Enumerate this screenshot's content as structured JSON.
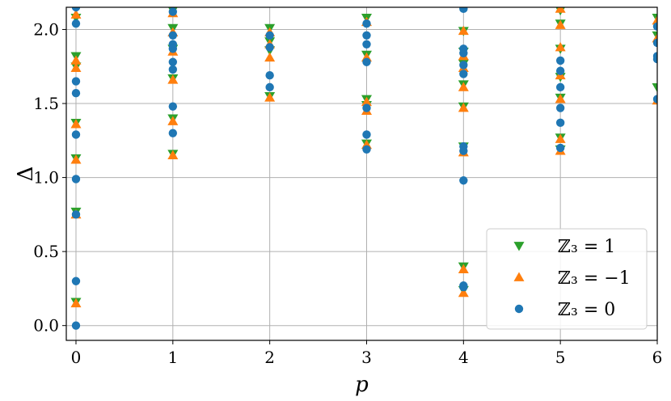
{
  "chart_data": {
    "type": "scatter",
    "xlabel": "p",
    "ylabel": "Δ",
    "xlim": [
      -0.1,
      6.0
    ],
    "ylim": [
      -0.1,
      2.15
    ],
    "xticks": [
      "0",
      "1",
      "2",
      "3",
      "4",
      "5",
      "6"
    ],
    "yticks": [
      "0.0",
      "0.5",
      "1.0",
      "1.5",
      "2.0"
    ],
    "grid": true,
    "legend_position": "bottom-right",
    "series": [
      {
        "name": "ℤ₃ = 1",
        "marker": "triangle-down",
        "color": "#2ca02c",
        "points": [
          [
            0,
            2.08
          ],
          [
            0,
            1.82
          ],
          [
            0,
            1.75
          ],
          [
            0,
            1.37
          ],
          [
            0,
            1.13
          ],
          [
            0,
            0.77
          ],
          [
            0,
            0.16
          ],
          [
            1,
            2.13
          ],
          [
            1,
            2.01
          ],
          [
            1,
            1.87
          ],
          [
            1,
            1.67
          ],
          [
            1,
            1.4
          ],
          [
            1,
            1.16
          ],
          [
            2,
            2.01
          ],
          [
            2,
            1.92
          ],
          [
            2,
            1.86
          ],
          [
            2,
            1.55
          ],
          [
            3,
            2.08
          ],
          [
            3,
            1.83
          ],
          [
            3,
            1.53
          ],
          [
            3,
            1.49
          ],
          [
            3,
            1.23
          ],
          [
            4,
            1.99
          ],
          [
            4,
            1.85
          ],
          [
            4,
            1.77
          ],
          [
            4,
            1.63
          ],
          [
            4,
            1.48
          ],
          [
            4,
            1.21
          ],
          [
            4,
            0.4
          ],
          [
            4,
            0.24
          ],
          [
            5,
            2.13
          ],
          [
            5,
            2.04
          ],
          [
            5,
            1.87
          ],
          [
            5,
            1.68
          ],
          [
            5,
            1.54
          ],
          [
            5,
            1.27
          ],
          [
            5,
            1.19
          ],
          [
            6,
            2.08
          ],
          [
            6,
            1.96
          ],
          [
            6,
            1.61
          ]
        ]
      },
      {
        "name": "ℤ₃ = −1",
        "marker": "triangle-up",
        "color": "#ff7f0e",
        "points": [
          [
            0,
            2.1
          ],
          [
            0,
            1.79
          ],
          [
            0,
            1.74
          ],
          [
            0,
            1.36
          ],
          [
            0,
            1.12
          ],
          [
            0,
            0.75
          ],
          [
            0,
            0.15
          ],
          [
            1,
            2.11
          ],
          [
            1,
            1.98
          ],
          [
            1,
            1.85
          ],
          [
            1,
            1.66
          ],
          [
            1,
            1.38
          ],
          [
            1,
            1.15
          ],
          [
            2,
            1.98
          ],
          [
            2,
            1.9
          ],
          [
            2,
            1.81
          ],
          [
            2,
            1.54
          ],
          [
            3,
            2.05
          ],
          [
            3,
            1.81
          ],
          [
            3,
            1.51
          ],
          [
            3,
            1.45
          ],
          [
            3,
            1.22
          ],
          [
            4,
            1.99
          ],
          [
            4,
            1.82
          ],
          [
            4,
            1.74
          ],
          [
            4,
            1.61
          ],
          [
            4,
            1.47
          ],
          [
            4,
            1.17
          ],
          [
            4,
            0.38
          ],
          [
            4,
            0.22
          ],
          [
            5,
            2.14
          ],
          [
            5,
            2.03
          ],
          [
            5,
            1.88
          ],
          [
            5,
            1.69
          ],
          [
            5,
            1.53
          ],
          [
            5,
            1.26
          ],
          [
            5,
            1.18
          ],
          [
            6,
            2.06
          ],
          [
            6,
            1.94
          ],
          [
            6,
            1.52
          ]
        ]
      },
      {
        "name": "ℤ₃ = 0",
        "marker": "circle",
        "color": "#1f77b4",
        "points": [
          [
            0,
            2.15
          ],
          [
            0,
            2.04
          ],
          [
            0,
            1.65
          ],
          [
            0,
            1.57
          ],
          [
            0,
            1.29
          ],
          [
            0,
            0.99
          ],
          [
            0,
            0.75
          ],
          [
            0,
            0.3
          ],
          [
            0,
            0.0
          ],
          [
            1,
            2.12
          ],
          [
            1,
            1.96
          ],
          [
            1,
            1.9
          ],
          [
            1,
            1.87
          ],
          [
            1,
            1.78
          ],
          [
            1,
            1.73
          ],
          [
            1,
            1.48
          ],
          [
            1,
            1.3
          ],
          [
            2,
            1.96
          ],
          [
            2,
            1.88
          ],
          [
            2,
            1.69
          ],
          [
            2,
            1.61
          ],
          [
            3,
            2.04
          ],
          [
            3,
            1.96
          ],
          [
            3,
            1.9
          ],
          [
            3,
            1.78
          ],
          [
            3,
            1.47
          ],
          [
            3,
            1.29
          ],
          [
            3,
            1.19
          ],
          [
            4,
            2.14
          ],
          [
            4,
            1.87
          ],
          [
            4,
            1.84
          ],
          [
            4,
            1.76
          ],
          [
            4,
            1.7
          ],
          [
            4,
            1.21
          ],
          [
            4,
            1.18
          ],
          [
            4,
            0.98
          ],
          [
            4,
            0.27
          ],
          [
            4,
            0.26
          ],
          [
            5,
            1.79
          ],
          [
            5,
            1.72
          ],
          [
            5,
            1.61
          ],
          [
            5,
            1.47
          ],
          [
            5,
            1.37
          ],
          [
            5,
            1.2
          ],
          [
            6,
            2.02
          ],
          [
            6,
            1.91
          ],
          [
            6,
            1.82
          ],
          [
            6,
            1.8
          ],
          [
            6,
            1.53
          ]
        ]
      }
    ]
  }
}
